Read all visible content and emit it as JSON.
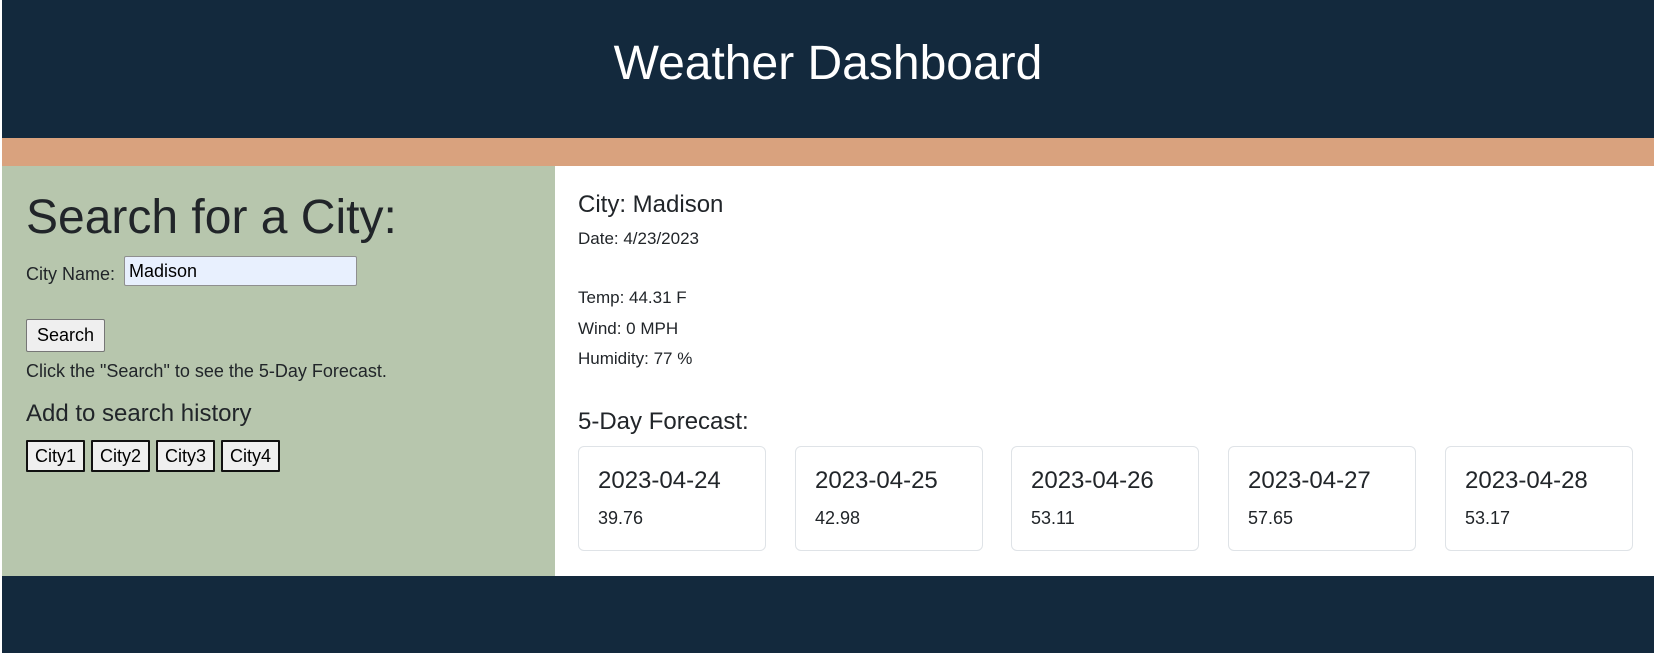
{
  "header": {
    "title": "Weather Dashboard"
  },
  "search": {
    "heading": "Search for a City:",
    "city_label": "City Name:",
    "input_value": "Madison",
    "button_label": "Search",
    "hint": "Click the \"Search\" to see the 5-Day Forecast.",
    "history_heading": "Add to search history",
    "history": [
      "City1",
      "City2",
      "City3",
      "City4"
    ]
  },
  "current": {
    "city": "City: Madison",
    "date": "Date: 4/23/2023",
    "temp": "Temp: 44.31 F",
    "wind": "Wind: 0 MPH",
    "humidity": "Humidity: 77 %"
  },
  "forecast": {
    "heading": "5-Day Forecast:",
    "days": [
      {
        "date": "2023-04-24",
        "temp": "39.76"
      },
      {
        "date": "2023-04-25",
        "temp": "42.98"
      },
      {
        "date": "2023-04-26",
        "temp": "53.11"
      },
      {
        "date": "2023-04-27",
        "temp": "57.65"
      },
      {
        "date": "2023-04-28",
        "temp": "53.17"
      }
    ]
  },
  "colors": {
    "header_bg": "#13293d",
    "accent_bar": "#d9a27e",
    "left_panel": "#b7c6ad",
    "right_panel": "#ffffff"
  }
}
